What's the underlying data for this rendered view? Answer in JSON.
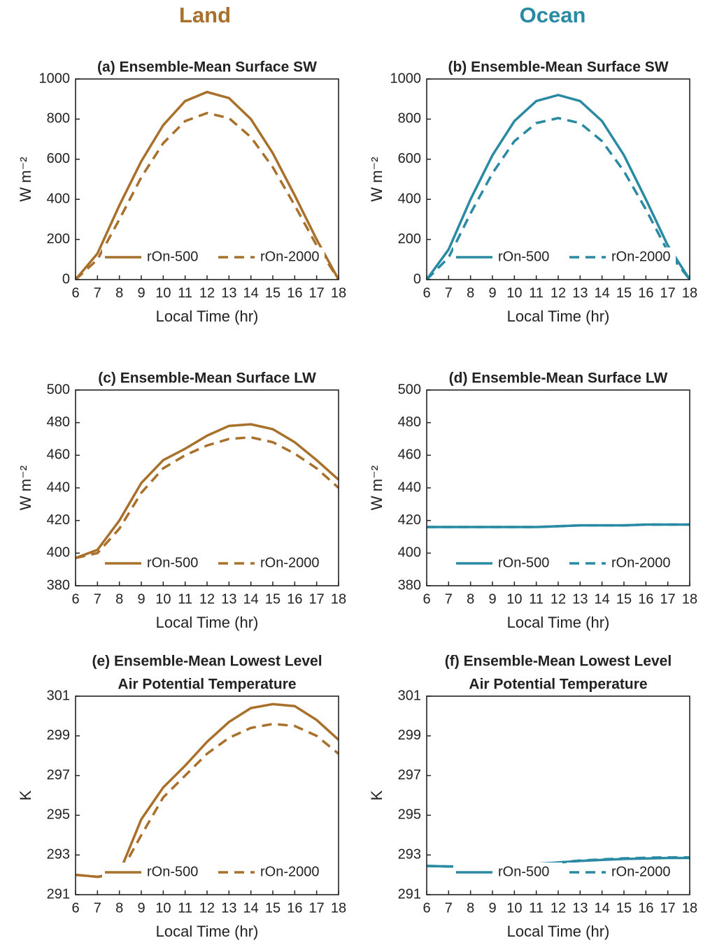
{
  "headers": [
    "Land",
    "Ocean"
  ],
  "chart_data": [
    {
      "type": "line",
      "title": [
        "(a) Ensemble-Mean Surface SW"
      ],
      "xlabel": "Local Time (hr)",
      "ylabel": "W m⁻²",
      "x": [
        6,
        7,
        8,
        9,
        10,
        11,
        12,
        13,
        14,
        15,
        16,
        17,
        18
      ],
      "xlim": [
        6,
        18
      ],
      "xticks": [
        6,
        7,
        8,
        9,
        10,
        11,
        12,
        13,
        14,
        15,
        16,
        17,
        18
      ],
      "ylim": [
        0,
        1000
      ],
      "yticks": [
        0,
        200,
        400,
        600,
        800,
        1000
      ],
      "series": [
        {
          "name": "rOn-500",
          "color": "#a8702a",
          "linestyle": "solid",
          "values": [
            0,
            130,
            370,
            590,
            770,
            890,
            935,
            905,
            800,
            630,
            420,
            200,
            0
          ]
        },
        {
          "name": "rOn-2000",
          "color": "#a8702a",
          "linestyle": "dashed",
          "values": [
            0,
            100,
            300,
            510,
            680,
            790,
            830,
            805,
            710,
            560,
            370,
            170,
            0
          ]
        }
      ]
    },
    {
      "type": "line",
      "title": [
        "(b) Ensemble-Mean Surface SW"
      ],
      "xlabel": "Local Time (hr)",
      "ylabel": "W m⁻²",
      "x": [
        6,
        7,
        8,
        9,
        10,
        11,
        12,
        13,
        14,
        15,
        16,
        17,
        18
      ],
      "xlim": [
        6,
        18
      ],
      "xticks": [
        6,
        7,
        8,
        9,
        10,
        11,
        12,
        13,
        14,
        15,
        16,
        17,
        18
      ],
      "ylim": [
        0,
        1000
      ],
      "yticks": [
        0,
        200,
        400,
        600,
        800,
        1000
      ],
      "series": [
        {
          "name": "rOn-500",
          "color": "#2a8aa3",
          "linestyle": "solid",
          "values": [
            0,
            150,
            400,
            620,
            790,
            890,
            920,
            890,
            790,
            620,
            400,
            170,
            0
          ]
        },
        {
          "name": "rOn-2000",
          "color": "#2a8aa3",
          "linestyle": "dashed",
          "values": [
            0,
            110,
            330,
            530,
            690,
            780,
            805,
            780,
            690,
            540,
            350,
            140,
            0
          ]
        }
      ]
    },
    {
      "type": "line",
      "title": [
        "(c) Ensemble-Mean Surface LW"
      ],
      "xlabel": "Local Time (hr)",
      "ylabel": "W m⁻²",
      "x": [
        6,
        7,
        8,
        9,
        10,
        11,
        12,
        13,
        14,
        15,
        16,
        17,
        18
      ],
      "xlim": [
        6,
        18
      ],
      "xticks": [
        6,
        7,
        8,
        9,
        10,
        11,
        12,
        13,
        14,
        15,
        16,
        17,
        18
      ],
      "ylim": [
        380,
        500
      ],
      "yticks": [
        380,
        400,
        420,
        440,
        460,
        480,
        500
      ],
      "series": [
        {
          "name": "rOn-500",
          "color": "#a8702a",
          "linestyle": "solid",
          "values": [
            397,
            402,
            420,
            443,
            457,
            464,
            472,
            478,
            479,
            476,
            468,
            457,
            445
          ]
        },
        {
          "name": "rOn-2000",
          "color": "#a8702a",
          "linestyle": "dashed",
          "values": [
            397,
            400,
            415,
            437,
            452,
            460,
            466,
            470,
            471,
            468,
            461,
            452,
            440
          ]
        }
      ]
    },
    {
      "type": "line",
      "title": [
        "(d) Ensemble-Mean Surface LW"
      ],
      "xlabel": "Local Time (hr)",
      "ylabel": "W m⁻²",
      "x": [
        6,
        7,
        8,
        9,
        10,
        11,
        12,
        13,
        14,
        15,
        16,
        17,
        18
      ],
      "xlim": [
        6,
        18
      ],
      "xticks": [
        6,
        7,
        8,
        9,
        10,
        11,
        12,
        13,
        14,
        15,
        16,
        17,
        18
      ],
      "ylim": [
        380,
        500
      ],
      "yticks": [
        380,
        400,
        420,
        440,
        460,
        480,
        500
      ],
      "series": [
        {
          "name": "rOn-500",
          "color": "#2a8aa3",
          "linestyle": "solid",
          "values": [
            416,
            416,
            416,
            416,
            416,
            416,
            416.5,
            417,
            417,
            417,
            417.5,
            417.5,
            417.5
          ]
        },
        {
          "name": "rOn-2000",
          "color": "#2a8aa3",
          "linestyle": "dashed",
          "values": [
            416,
            416,
            416,
            416,
            416,
            416,
            416.5,
            417,
            417,
            417,
            417.5,
            417.5,
            417.5
          ]
        }
      ]
    },
    {
      "type": "line",
      "title": [
        "(e) Ensemble-Mean Lowest Level",
        "Air Potential Temperature"
      ],
      "xlabel": "Local Time (hr)",
      "ylabel": "K",
      "x": [
        6,
        7,
        8,
        9,
        10,
        11,
        12,
        13,
        14,
        15,
        16,
        17,
        18
      ],
      "xlim": [
        6,
        18
      ],
      "xticks": [
        6,
        7,
        8,
        9,
        10,
        11,
        12,
        13,
        14,
        15,
        16,
        17,
        18
      ],
      "ylim": [
        291,
        301
      ],
      "yticks": [
        291,
        293,
        295,
        297,
        299,
        301
      ],
      "series": [
        {
          "name": "rOn-500",
          "color": "#a8702a",
          "linestyle": "solid",
          "values": [
            292,
            291.9,
            292.1,
            294.8,
            296.4,
            297.5,
            298.7,
            299.7,
            300.4,
            300.6,
            300.5,
            299.8,
            298.8
          ]
        },
        {
          "name": "rOn-2000",
          "color": "#a8702a",
          "linestyle": "dashed",
          "values": [
            292,
            291.9,
            292,
            294,
            295.9,
            297,
            298.1,
            298.9,
            299.4,
            299.6,
            299.5,
            299,
            298.1
          ]
        }
      ]
    },
    {
      "type": "line",
      "title": [
        "(f) Ensemble-Mean Lowest Level",
        "Air Potential Temperature"
      ],
      "xlabel": "Local Time (hr)",
      "ylabel": "K",
      "x": [
        6,
        7,
        8,
        9,
        10,
        11,
        12,
        13,
        14,
        15,
        16,
        17,
        18
      ],
      "xlim": [
        6,
        18
      ],
      "xticks": [
        6,
        7,
        8,
        9,
        10,
        11,
        12,
        13,
        14,
        15,
        16,
        17,
        18
      ],
      "ylim": [
        291,
        301
      ],
      "yticks": [
        291,
        293,
        295,
        297,
        299,
        301
      ],
      "series": [
        {
          "name": "rOn-500",
          "color": "#2a8aa3",
          "linestyle": "solid",
          "values": [
            292.45,
            292.42,
            292.42,
            292.45,
            292.5,
            292.55,
            292.62,
            292.7,
            292.75,
            292.8,
            292.82,
            292.85,
            292.85
          ]
        },
        {
          "name": "rOn-2000",
          "color": "#2a8aa3",
          "linestyle": "dashed",
          "values": [
            292.45,
            292.42,
            292.42,
            292.45,
            292.5,
            292.55,
            292.62,
            292.72,
            292.78,
            292.83,
            292.86,
            292.88,
            292.88
          ]
        }
      ]
    }
  ]
}
